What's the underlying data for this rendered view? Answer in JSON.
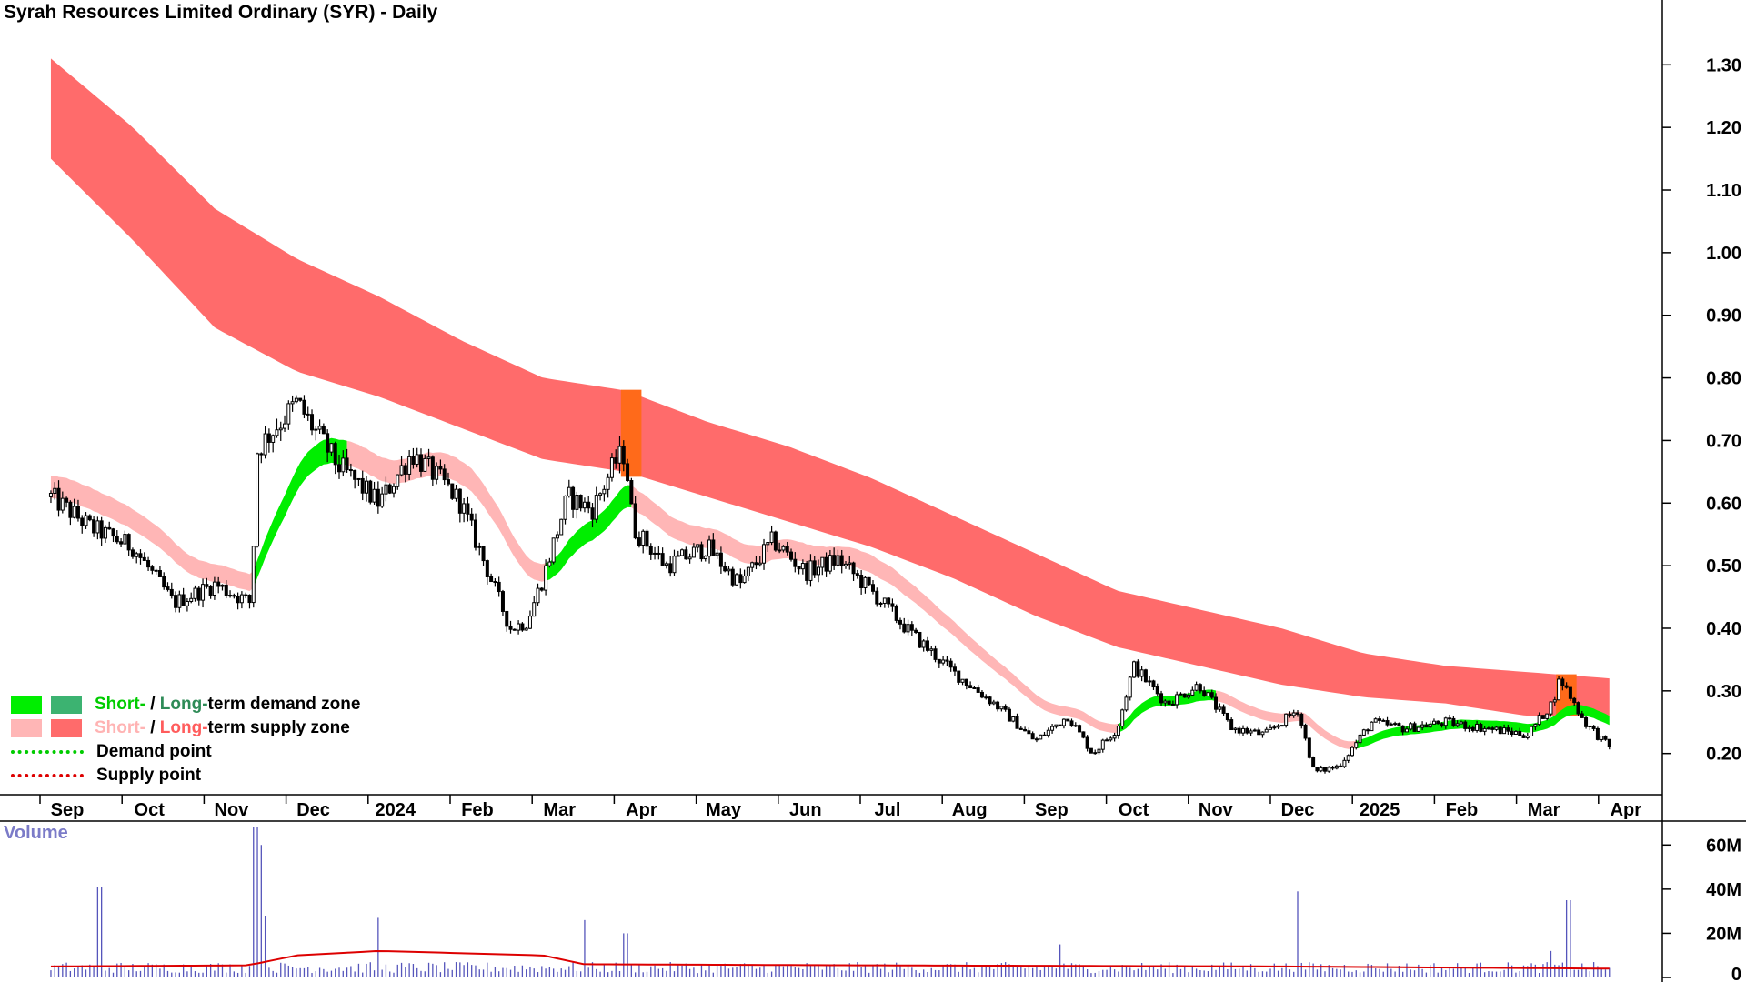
{
  "chart_title": "Syrah Resources Limited Ordinary (SYR) - Daily",
  "volume_label": "Volume",
  "legend": {
    "short": "Short-",
    "sep": " / ",
    "long": "Long-",
    "demand_zone_rest": "term demand zone",
    "supply_zone_rest": "term supply zone",
    "demand_point": "Demand point",
    "supply_point": "Supply point"
  },
  "colors": {
    "short_demand": "#00ee00",
    "long_demand": "#3cb371",
    "short_supply": "#ffb6b6",
    "long_supply": "#ff6b6b",
    "transition": "#ff6a1a",
    "volume_bars": "#5555bb",
    "volume_average": "#dd0000"
  },
  "chart_data": [
    {
      "type": "candlestick",
      "title": "Syrah Resources Limited Ordinary (SYR) - Daily",
      "y_axis": {
        "side": "right",
        "ylim": [
          0.14,
          1.36
        ],
        "ticks": [
          "0.20",
          "0.30",
          "0.40",
          "0.50",
          "0.60",
          "0.70",
          "0.80",
          "0.90",
          "1.00",
          "1.10",
          "1.20",
          "1.30"
        ]
      },
      "x_tick_labels": [
        "Sep",
        "Oct",
        "Nov",
        "Dec",
        "2024",
        "Feb",
        "Mar",
        "Apr",
        "May",
        "Jun",
        "Jul",
        "Aug",
        "Sep",
        "Oct",
        "Nov",
        "Dec",
        "2025",
        "Feb",
        "Mar",
        "Apr"
      ],
      "price_path": [
        {
          "m": 0,
          "p": 0.61
        },
        {
          "m": 0.5,
          "p": 0.56
        },
        {
          "m": 1.0,
          "p": 0.53
        },
        {
          "m": 1.5,
          "p": 0.44
        },
        {
          "m": 2.0,
          "p": 0.47
        },
        {
          "m": 2.45,
          "p": 0.44
        },
        {
          "m": 2.5,
          "p": 0.68
        },
        {
          "m": 2.6,
          "p": 0.7
        },
        {
          "m": 3.0,
          "p": 0.76
        },
        {
          "m": 3.5,
          "p": 0.66
        },
        {
          "m": 4.0,
          "p": 0.6
        },
        {
          "m": 4.4,
          "p": 0.68
        },
        {
          "m": 4.8,
          "p": 0.63
        },
        {
          "m": 5.0,
          "p": 0.6
        },
        {
          "m": 5.3,
          "p": 0.5
        },
        {
          "m": 5.6,
          "p": 0.4
        },
        {
          "m": 5.8,
          "p": 0.41
        },
        {
          "m": 6.0,
          "p": 0.48
        },
        {
          "m": 6.3,
          "p": 0.61
        },
        {
          "m": 6.6,
          "p": 0.59
        },
        {
          "m": 6.9,
          "p": 0.67
        },
        {
          "m": 7.0,
          "p": 0.68
        },
        {
          "m": 7.1,
          "p": 0.56
        },
        {
          "m": 7.5,
          "p": 0.5
        },
        {
          "m": 8.0,
          "p": 0.53
        },
        {
          "m": 8.4,
          "p": 0.47
        },
        {
          "m": 8.8,
          "p": 0.54
        },
        {
          "m": 9.2,
          "p": 0.49
        },
        {
          "m": 9.6,
          "p": 0.51
        },
        {
          "m": 10.0,
          "p": 0.46
        },
        {
          "m": 10.5,
          "p": 0.39
        },
        {
          "m": 11.0,
          "p": 0.33
        },
        {
          "m": 11.5,
          "p": 0.28
        },
        {
          "m": 12.0,
          "p": 0.22
        },
        {
          "m": 12.4,
          "p": 0.26
        },
        {
          "m": 12.7,
          "p": 0.2
        },
        {
          "m": 13.0,
          "p": 0.24
        },
        {
          "m": 13.2,
          "p": 0.34
        },
        {
          "m": 13.6,
          "p": 0.28
        },
        {
          "m": 14.0,
          "p": 0.31
        },
        {
          "m": 14.4,
          "p": 0.24
        },
        {
          "m": 14.8,
          "p": 0.23
        },
        {
          "m": 15.2,
          "p": 0.27
        },
        {
          "m": 15.4,
          "p": 0.17
        },
        {
          "m": 15.7,
          "p": 0.18
        },
        {
          "m": 16.1,
          "p": 0.25
        },
        {
          "m": 16.5,
          "p": 0.24
        },
        {
          "m": 17.0,
          "p": 0.25
        },
        {
          "m": 17.5,
          "p": 0.24
        },
        {
          "m": 18.0,
          "p": 0.23
        },
        {
          "m": 18.3,
          "p": 0.28
        },
        {
          "m": 18.4,
          "p": 0.32
        },
        {
          "m": 18.7,
          "p": 0.25
        },
        {
          "m": 19.0,
          "p": 0.21
        }
      ],
      "long_term_zone": [
        {
          "m": 0,
          "top": 1.31,
          "bot": 1.15
        },
        {
          "m": 1,
          "top": 1.2,
          "bot": 1.02
        },
        {
          "m": 2,
          "top": 1.07,
          "bot": 0.88
        },
        {
          "m": 3,
          "top": 0.99,
          "bot": 0.81
        },
        {
          "m": 4,
          "top": 0.93,
          "bot": 0.77
        },
        {
          "m": 5,
          "top": 0.86,
          "bot": 0.72
        },
        {
          "m": 6,
          "top": 0.8,
          "bot": 0.67
        },
        {
          "m": 7,
          "top": 0.78,
          "bot": 0.65
        },
        {
          "m": 8,
          "top": 0.73,
          "bot": 0.61
        },
        {
          "m": 9,
          "top": 0.69,
          "bot": 0.57
        },
        {
          "m": 10,
          "top": 0.64,
          "bot": 0.53
        },
        {
          "m": 11,
          "top": 0.58,
          "bot": 0.48
        },
        {
          "m": 12,
          "top": 0.52,
          "bot": 0.42
        },
        {
          "m": 13,
          "top": 0.46,
          "bot": 0.37
        },
        {
          "m": 14,
          "top": 0.43,
          "bot": 0.34
        },
        {
          "m": 15,
          "top": 0.4,
          "bot": 0.31
        },
        {
          "m": 16,
          "top": 0.36,
          "bot": 0.29
        },
        {
          "m": 17,
          "top": 0.34,
          "bot": 0.28
        },
        {
          "m": 18,
          "top": 0.33,
          "bot": 0.26
        },
        {
          "m": 19,
          "top": 0.32,
          "bot": 0.26
        }
      ],
      "long_term_demand_windows": [
        [
          6.95,
          7.2
        ],
        [
          18.35,
          18.6
        ]
      ]
    },
    {
      "type": "bar",
      "title": "Volume",
      "y_axis": {
        "side": "right",
        "ylim": [
          0,
          70
        ],
        "ticks": [
          "0",
          "20M",
          "40M",
          "60M"
        ]
      },
      "volume_spikes": [
        {
          "m": 0.6,
          "v": 41
        },
        {
          "m": 2.5,
          "v": 68
        },
        {
          "m": 2.55,
          "v": 60
        },
        {
          "m": 2.62,
          "v": 28
        },
        {
          "m": 4.0,
          "v": 27
        },
        {
          "m": 6.5,
          "v": 26
        },
        {
          "m": 7.0,
          "v": 20
        },
        {
          "m": 12.3,
          "v": 15
        },
        {
          "m": 15.2,
          "v": 39
        },
        {
          "m": 18.5,
          "v": 35
        },
        {
          "m": 18.3,
          "v": 12
        }
      ],
      "average_line": [
        {
          "m": 0,
          "v": 5
        },
        {
          "m": 2.4,
          "v": 5.5
        },
        {
          "m": 3,
          "v": 10
        },
        {
          "m": 4,
          "v": 12
        },
        {
          "m": 5,
          "v": 11
        },
        {
          "m": 6,
          "v": 10
        },
        {
          "m": 6.5,
          "v": 6
        },
        {
          "m": 10,
          "v": 5.5
        },
        {
          "m": 15,
          "v": 5
        },
        {
          "m": 19,
          "v": 4
        }
      ]
    }
  ]
}
